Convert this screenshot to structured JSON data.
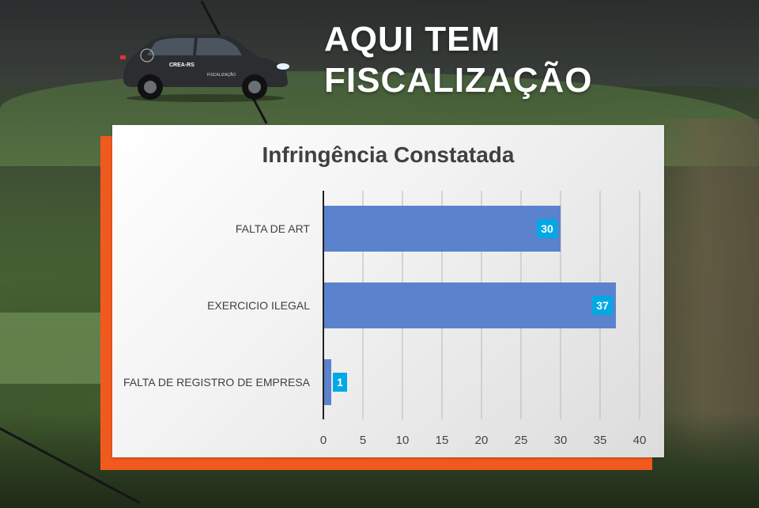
{
  "headline": {
    "line1": "AQUI TEM",
    "line2": "FISCALIZAÇÃO"
  },
  "car": {
    "door_label": "CREA-RS",
    "side_label": "FISCALIZAÇÃO"
  },
  "colors": {
    "bar": "#5b82cc",
    "label_box": "#00a9e6",
    "frame": "#f05a1e",
    "axis": "#222222",
    "grid": "#b8b8b8"
  },
  "chart_data": {
    "type": "bar",
    "orientation": "horizontal",
    "title": "Infringência Constatada",
    "categories": [
      "FALTA DE ART",
      "EXERCICIO ILEGAL",
      "FALTA DE REGISTRO DE EMPRESA"
    ],
    "values": [
      30,
      37,
      1
    ],
    "xlim": [
      0,
      40
    ],
    "xticks": [
      0,
      5,
      10,
      15,
      20,
      25,
      30,
      35,
      40
    ],
    "grid": true,
    "data_labels": true
  }
}
